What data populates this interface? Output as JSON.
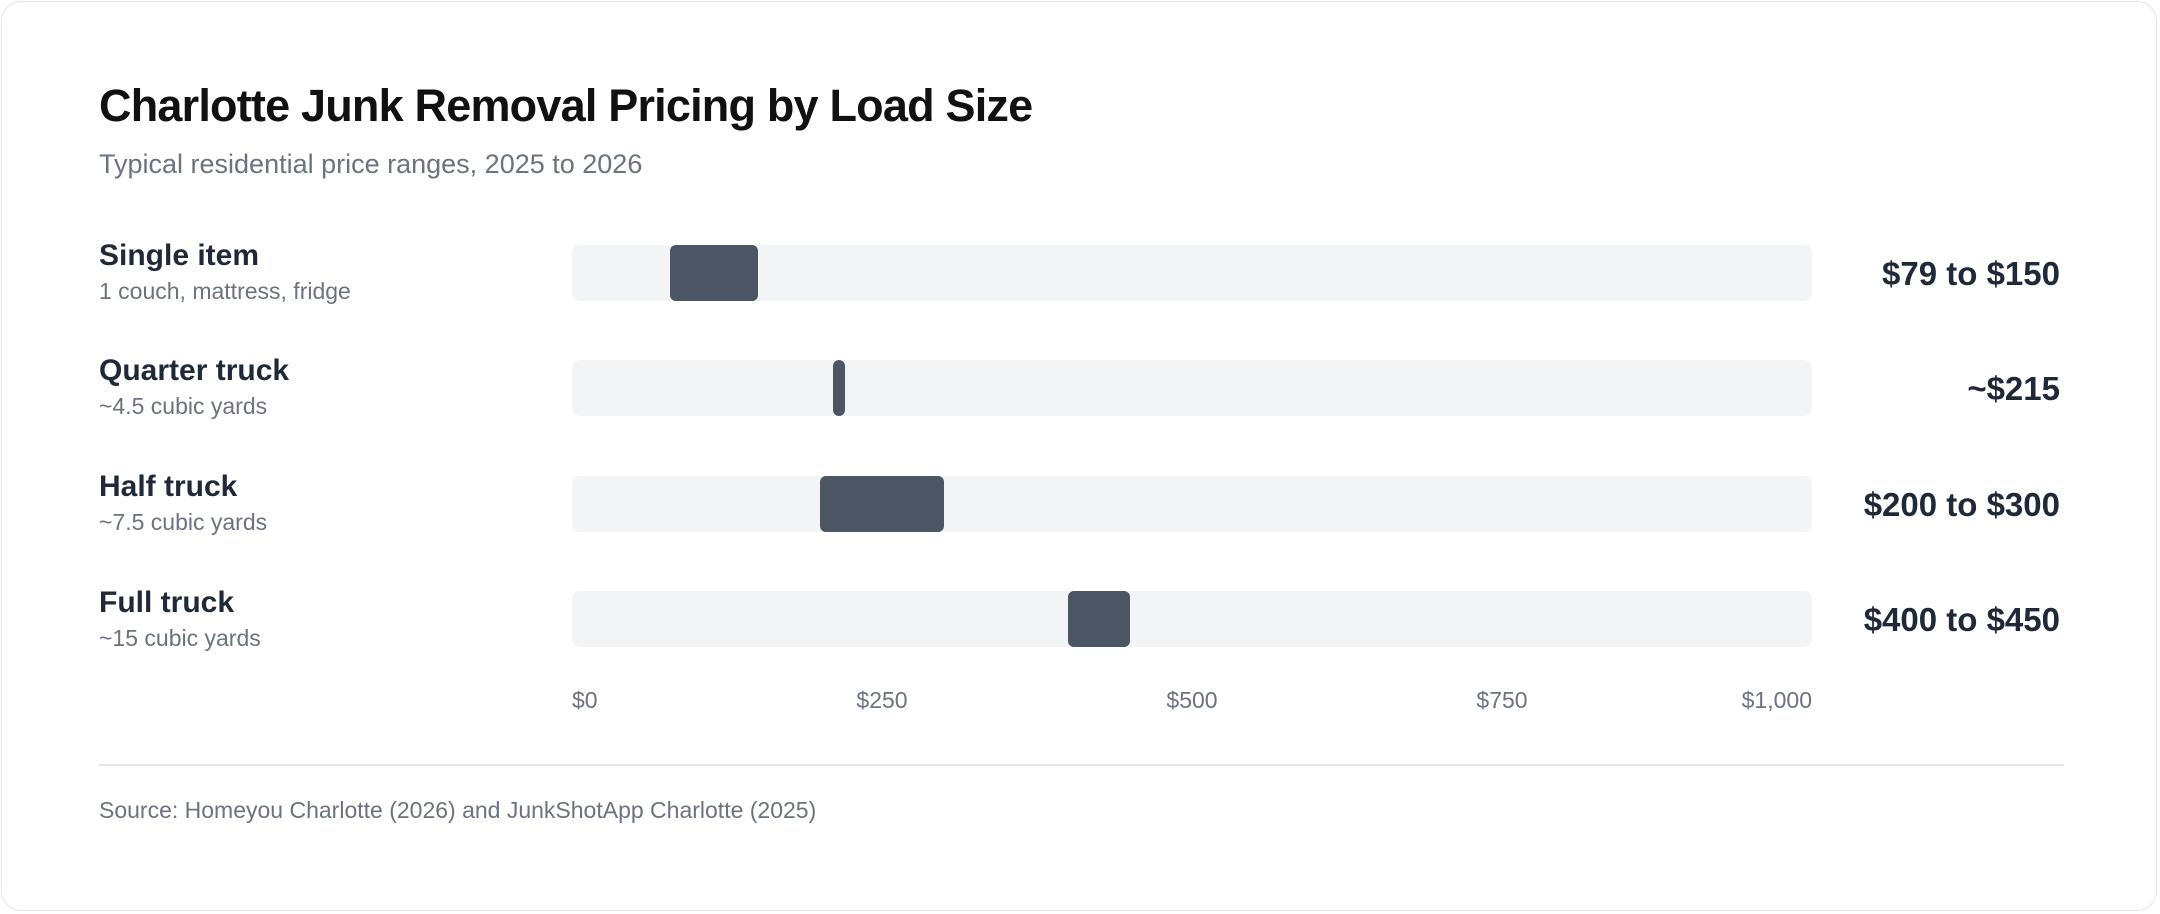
{
  "colors": {
    "bar": "#4b5563",
    "track": "#f3f4f6",
    "text_primary": "#1f2937",
    "text_muted": "#6b7280"
  },
  "chart_data": {
    "type": "range-bar",
    "title": "Charlotte Junk Removal Pricing by Load Size",
    "subtitle": "Typical residential price ranges, 2025 to 2026",
    "source": "Source: Homeyou Charlotte (2026) and JunkShotApp Charlotte (2025)",
    "xlim": [
      0,
      1000
    ],
    "x_ticks": [
      {
        "value": 0,
        "label": "$0"
      },
      {
        "value": 250,
        "label": "$250"
      },
      {
        "value": 500,
        "label": "$500"
      },
      {
        "value": 750,
        "label": "$750"
      },
      {
        "value": 1000,
        "label": "$1,000"
      }
    ],
    "rows": [
      {
        "name": "Single item",
        "detail": "1 couch, mattress, fridge",
        "low": 79,
        "high": 150,
        "value_label": "$79 to $150"
      },
      {
        "name": "Quarter truck",
        "detail": "~4.5 cubic yards",
        "low": 215,
        "high": 215,
        "value_label": "~$215"
      },
      {
        "name": "Half truck",
        "detail": "~7.5 cubic yards",
        "low": 200,
        "high": 300,
        "value_label": "$200 to $300"
      },
      {
        "name": "Full truck",
        "detail": "~15 cubic yards",
        "low": 400,
        "high": 450,
        "value_label": "$400 to $450"
      }
    ]
  }
}
